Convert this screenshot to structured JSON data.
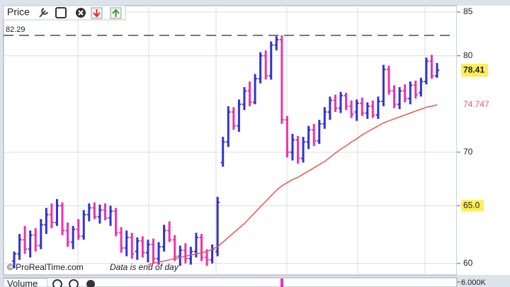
{
  "chart_data": {
    "type": "ohlc",
    "title": "Price",
    "log": true,
    "grid": true,
    "ylim": [
      59.05,
      85.75
    ],
    "yticks": [
      60,
      {
        "value": 65,
        "label": "65.0"
      },
      70,
      80,
      85
    ],
    "up_color": "#3333cc",
    "down_color": "#ee33aa",
    "open": [
      60.2,
      60.8,
      62.0,
      61.2,
      62.4,
      61.5,
      63.3,
      64.2,
      63.5,
      65.0,
      62.8,
      61.8,
      62.9,
      62.3,
      64.2,
      64.8,
      64.0,
      64.6,
      63.9,
      64.5,
      62.6,
      61.3,
      62.2,
      61.0,
      61.9,
      60.9,
      61.6,
      60.4,
      61.4,
      62.8,
      62.0,
      60.6,
      61.1,
      60.4,
      61.0,
      62.2,
      60.5,
      60.3,
      61.0,
      69.0,
      71.0,
      74.0,
      72.6,
      74.8,
      76.2,
      75.0,
      77.5,
      80.0,
      77.8,
      81.2,
      81.8,
      73.2,
      70.0,
      71.2,
      69.4,
      71.0,
      72.2,
      71.1,
      72.8,
      74.0,
      75.2,
      74.4,
      75.7,
      74.6,
      74.0,
      74.9,
      73.9,
      74.6,
      73.7,
      75.1,
      78.5,
      76.2,
      74.8,
      76.2,
      75.4,
      76.8,
      76.0,
      77.2,
      79.4,
      77.8
    ],
    "high": [
      61.0,
      62.5,
      63.2,
      62.8,
      63.0,
      63.8,
      64.8,
      65.2,
      65.6,
      65.3,
      63.5,
      63.2,
      63.8,
      64.6,
      65.2,
      65.3,
      65.1,
      65.2,
      65.0,
      64.8,
      63.1,
      62.8,
      62.6,
      62.2,
      62.3,
      62.0,
      62.1,
      61.8,
      63.3,
      63.6,
      62.4,
      61.5,
      61.7,
      61.4,
      62.6,
      62.5,
      61.2,
      61.6,
      65.8,
      71.5,
      74.6,
      74.5,
      75.3,
      76.6,
      77.2,
      78.0,
      80.4,
      80.6,
      81.6,
      82.2,
      82.3,
      73.6,
      71.8,
      71.6,
      71.5,
      72.6,
      72.8,
      73.2,
      74.5,
      75.6,
      75.8,
      76.1,
      76.0,
      75.2,
      75.3,
      75.5,
      75.0,
      75.2,
      75.6,
      79.0,
      78.9,
      76.8,
      76.6,
      76.9,
      77.2,
      77.3,
      77.6,
      79.8,
      80.1,
      79.2
    ],
    "low": [
      59.6,
      60.3,
      60.8,
      60.5,
      61.0,
      61.2,
      62.5,
      63.0,
      63.2,
      62.4,
      61.4,
      61.2,
      62.0,
      62.0,
      63.6,
      63.8,
      63.4,
      63.7,
      63.2,
      62.3,
      60.9,
      60.6,
      60.4,
      60.3,
      60.5,
      60.1,
      60.0,
      59.9,
      61.0,
      61.8,
      60.2,
      59.8,
      60.0,
      59.9,
      60.5,
      60.2,
      59.8,
      60.0,
      60.6,
      68.6,
      70.5,
      72.2,
      72.0,
      74.2,
      74.6,
      74.8,
      77.0,
      77.4,
      77.4,
      80.6,
      72.8,
      69.5,
      69.2,
      68.9,
      69.0,
      70.3,
      70.6,
      70.8,
      72.3,
      73.2,
      74.0,
      73.9,
      74.2,
      73.4,
      73.1,
      73.6,
      73.3,
      73.4,
      73.3,
      74.6,
      75.8,
      74.4,
      74.3,
      75.0,
      74.8,
      75.4,
      75.6,
      76.9,
      77.5,
      77.6
    ],
    "close": [
      60.8,
      62.0,
      61.2,
      62.4,
      61.5,
      63.3,
      64.2,
      63.5,
      65.0,
      62.8,
      61.8,
      62.9,
      62.3,
      64.2,
      64.8,
      64.0,
      64.6,
      63.9,
      64.5,
      62.6,
      61.3,
      62.2,
      60.8,
      61.9,
      60.9,
      61.6,
      60.4,
      61.4,
      62.8,
      62.0,
      60.6,
      61.1,
      60.4,
      61.0,
      62.2,
      60.5,
      60.3,
      61.2,
      65.3,
      71.0,
      74.0,
      72.6,
      74.8,
      76.2,
      75.0,
      77.5,
      80.0,
      77.8,
      81.2,
      81.8,
      73.2,
      70.0,
      71.2,
      69.4,
      71.0,
      72.2,
      71.1,
      72.8,
      74.0,
      75.2,
      74.4,
      75.7,
      74.6,
      73.8,
      74.9,
      73.9,
      74.6,
      73.7,
      75.1,
      78.5,
      76.2,
      74.8,
      76.2,
      75.4,
      76.8,
      75.8,
      77.2,
      79.4,
      77.8,
      78.41
    ],
    "moving_average": {
      "color": "#ee5555",
      "values": [
        null,
        null,
        null,
        null,
        null,
        null,
        null,
        null,
        null,
        null,
        null,
        null,
        null,
        null,
        null,
        null,
        null,
        null,
        null,
        null,
        null,
        null,
        null,
        null,
        null,
        59.9,
        60.0,
        60.1,
        60.2,
        60.3,
        60.4,
        60.5,
        60.6,
        60.7,
        60.8,
        60.9,
        61.0,
        61.2,
        61.4,
        61.8,
        62.2,
        62.6,
        63.0,
        63.4,
        63.9,
        64.4,
        64.9,
        65.4,
        65.9,
        66.4,
        66.8,
        67.1,
        67.4,
        67.6,
        67.9,
        68.2,
        68.5,
        68.8,
        69.1,
        69.5,
        69.9,
        70.3,
        70.6,
        71.0,
        71.3,
        71.7,
        72.0,
        72.3,
        72.6,
        72.9,
        73.1,
        73.3,
        73.5,
        73.7,
        73.9,
        74.1,
        74.3,
        74.5,
        74.6,
        74.747
      ]
    },
    "reference_line": 82.29,
    "watermark": "© ProRealTime.com",
    "note": "Data is end of day",
    "volume": {
      "title": "Volume",
      "yticks": [
        {
          "value": 6000,
          "label": "6.000K"
        }
      ]
    }
  }
}
